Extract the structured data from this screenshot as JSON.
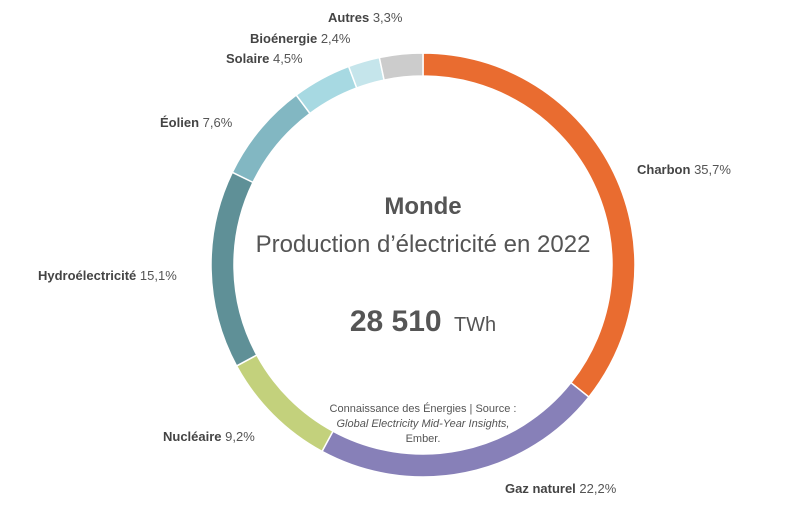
{
  "chart_data": {
    "type": "pie",
    "title": "Monde",
    "subtitle": "Production d’électricité en 2022",
    "total": {
      "value": "28 510",
      "unit": "TWh"
    },
    "series": [
      {
        "name": "Charbon",
        "value": 35.7,
        "label": "35,7%",
        "color": "#E96C30"
      },
      {
        "name": "Gaz naturel",
        "value": 22.2,
        "label": "22,2%",
        "color": "#8780B8"
      },
      {
        "name": "Nucléaire",
        "value": 9.2,
        "label": "9,2%",
        "color": "#C3D17C"
      },
      {
        "name": "Hydroélectricité",
        "value": 15.1,
        "label": "15,1%",
        "color": "#5F9097"
      },
      {
        "name": "Éolien",
        "value": 7.6,
        "label": "7,6%",
        "color": "#82B7C2"
      },
      {
        "name": "Solaire",
        "value": 4.5,
        "label": "4,5%",
        "color": "#A7D9E2"
      },
      {
        "name": "Bioénergie",
        "value": 2.4,
        "label": "2,4%",
        "color": "#C5E5EB"
      },
      {
        "name": "Autres",
        "value": 3.3,
        "label": "3,3%",
        "color": "#CCCCCC"
      }
    ],
    "source": {
      "prefix": "Connaissance des Énergies | Source :",
      "publication": "Global Electricity Mid-Year Insights,",
      "publisher": "Ember."
    }
  }
}
